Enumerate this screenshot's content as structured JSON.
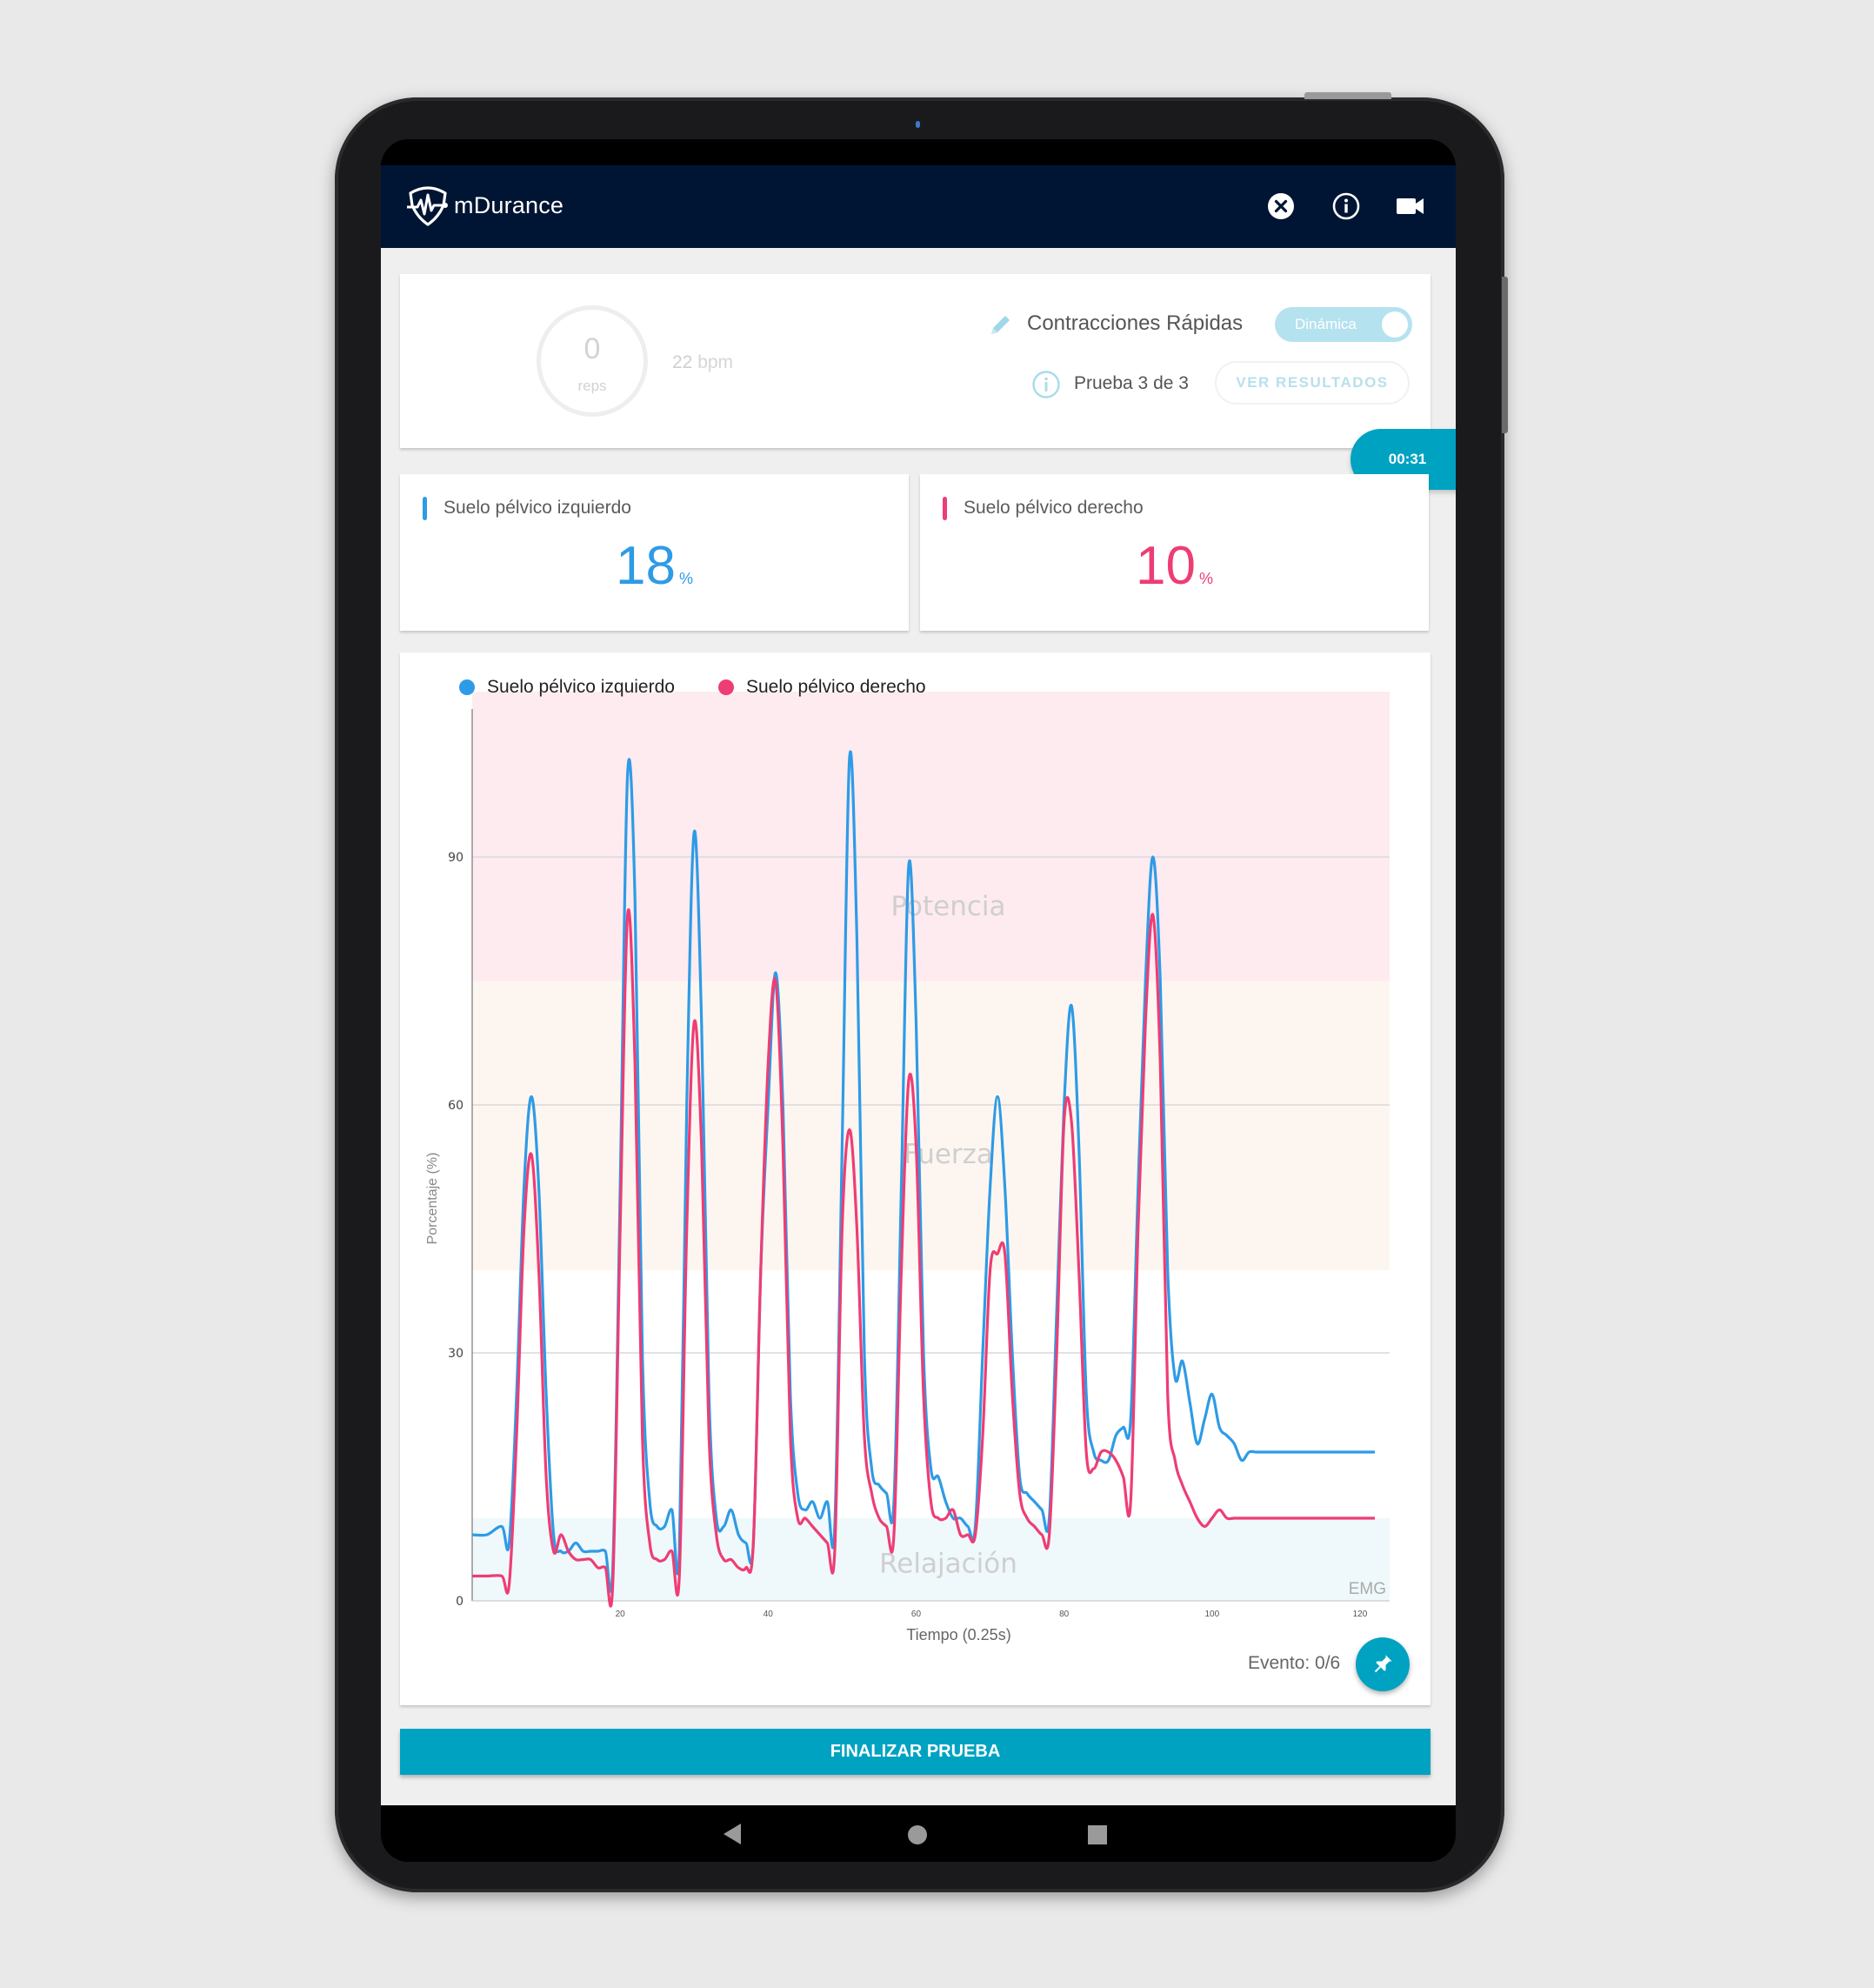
{
  "app": {
    "title": "mDurance",
    "header_icons": [
      "close-circle-icon",
      "info-icon",
      "video-camera-icon"
    ]
  },
  "session": {
    "reps_value": "0",
    "reps_label": "reps",
    "bpm_value": "22",
    "bpm_unit": "bpm",
    "exercise_name": "Contracciones Rápidas",
    "mode_toggle_label": "Dinámica",
    "trial_text": "Prueba 3 de 3",
    "results_button": "VER RESULTADOS",
    "timer": "00:31"
  },
  "stats": [
    {
      "label": "Suelo pélvico izquierdo",
      "value": "18",
      "unit": "%",
      "color": "#2e9be6"
    },
    {
      "label": "Suelo pélvico derecho",
      "value": "10",
      "unit": "%",
      "color": "#ee3d74"
    }
  ],
  "chart": {
    "legend": [
      {
        "label": "Suelo pélvico izquierdo",
        "color": "#2e9be6"
      },
      {
        "label": "Suelo pélvico derecho",
        "color": "#ee3d74"
      }
    ],
    "ylabel": "Porcentaje (%)",
    "xlabel": "Tiempo (0.25s)",
    "watermark": "EMG",
    "zones": [
      {
        "label": "Potencia",
        "from": 75,
        "to": 110,
        "color": "#fdebf0"
      },
      {
        "label": "Fuerza",
        "from": 40,
        "to": 75,
        "color": "#fdf6f0"
      },
      {
        "label": "Relajación",
        "from": 0,
        "to": 10,
        "color": "#eff8fb"
      }
    ]
  },
  "chart_data": {
    "type": "line",
    "title": "",
    "xlabel": "Tiempo (0.25s)",
    "ylabel": "Porcentaje (%)",
    "xlim": [
      0,
      124
    ],
    "ylim": [
      0,
      110
    ],
    "x_ticks": [
      20,
      40,
      60,
      80,
      100,
      120
    ],
    "y_ticks": [
      0,
      30,
      60,
      90
    ],
    "grid": "horizontal",
    "legend_position": "top-left",
    "annotations": [
      "Potencia",
      "Fuerza",
      "Relajación",
      "EMG"
    ],
    "x": [
      0,
      2,
      4,
      5,
      6,
      7,
      8,
      9,
      10,
      11,
      12,
      13,
      14,
      15,
      16,
      17,
      18,
      19,
      20,
      21,
      22,
      23,
      24,
      25,
      26,
      27,
      28,
      29,
      30,
      31,
      32,
      33,
      34,
      35,
      36,
      37,
      38,
      39,
      40,
      41,
      42,
      43,
      44,
      45,
      46,
      47,
      48,
      49,
      50,
      51,
      52,
      53,
      54,
      55,
      56,
      57,
      58,
      59,
      60,
      61,
      62,
      63,
      64,
      65,
      66,
      67,
      68,
      69,
      70,
      71,
      72,
      73,
      74,
      75,
      76,
      77,
      78,
      79,
      80,
      81,
      82,
      83,
      84,
      85,
      86,
      87,
      88,
      89,
      90,
      91,
      92,
      93,
      94,
      95,
      96,
      97,
      98,
      99,
      100,
      101,
      102,
      103,
      104,
      105,
      106,
      107,
      108,
      109,
      110,
      111,
      112,
      113,
      114,
      115,
      116,
      117,
      118,
      119,
      120,
      121,
      122,
      123,
      124
    ],
    "series": [
      {
        "name": "Suelo pélvico izquierdo",
        "color": "#2e9be6",
        "values": [
          8,
          8,
          9,
          7,
          25,
          50,
          61,
          50,
          25,
          8,
          6,
          6,
          7,
          6,
          6,
          6,
          6,
          4,
          50,
          100,
          85,
          30,
          12,
          9,
          9,
          11,
          6,
          60,
          93,
          70,
          25,
          10,
          9,
          11,
          8,
          7,
          7,
          40,
          60,
          76,
          60,
          25,
          13,
          11,
          12,
          10,
          12,
          9,
          55,
          102,
          80,
          30,
          16,
          14,
          13,
          12,
          50,
          89,
          70,
          30,
          16,
          15,
          12,
          10,
          10,
          9,
          9,
          30,
          50,
          61,
          50,
          30,
          15,
          13,
          12,
          11,
          10,
          35,
          60,
          72,
          55,
          25,
          18,
          17,
          17,
          20,
          21,
          22,
          50,
          75,
          90,
          75,
          40,
          27,
          29,
          24,
          19,
          22,
          25,
          21,
          20,
          19,
          17,
          18,
          18,
          18,
          18,
          18,
          18,
          18,
          18,
          18,
          18,
          18,
          18,
          18,
          18,
          18,
          18,
          18,
          18
        ]
      },
      {
        "name": "Suelo pélvico derecho",
        "color": "#ee3d74",
        "values": [
          3,
          3,
          3,
          2,
          20,
          45,
          54,
          40,
          15,
          6,
          8,
          6,
          5,
          5,
          5,
          4,
          4,
          2,
          45,
          83,
          65,
          20,
          7,
          5,
          5,
          6,
          3,
          45,
          70,
          55,
          20,
          8,
          5,
          5,
          4,
          4,
          7,
          40,
          65,
          75,
          55,
          20,
          10,
          10,
          9,
          8,
          7,
          6,
          45,
          57,
          45,
          20,
          13,
          10,
          9,
          8,
          40,
          63,
          55,
          25,
          12,
          10,
          10,
          11,
          8,
          8,
          8,
          20,
          40,
          42,
          42,
          25,
          13,
          10,
          9,
          8,
          8,
          30,
          58,
          58,
          40,
          18,
          16,
          18,
          18,
          17,
          15,
          12,
          45,
          70,
          83,
          65,
          25,
          17,
          14,
          12,
          10,
          9,
          10,
          11,
          10,
          10,
          10,
          10,
          10,
          10,
          10,
          10,
          10,
          10,
          10,
          10,
          10,
          10,
          10,
          10,
          10,
          10,
          10,
          10,
          10
        ]
      }
    ]
  },
  "footer": {
    "event_text": "Evento: 0/6",
    "pin_icon": "pin-icon",
    "finish_button": "FINALIZAR PRUEBA"
  },
  "navbar": [
    "back-icon",
    "home-icon",
    "recents-icon"
  ]
}
